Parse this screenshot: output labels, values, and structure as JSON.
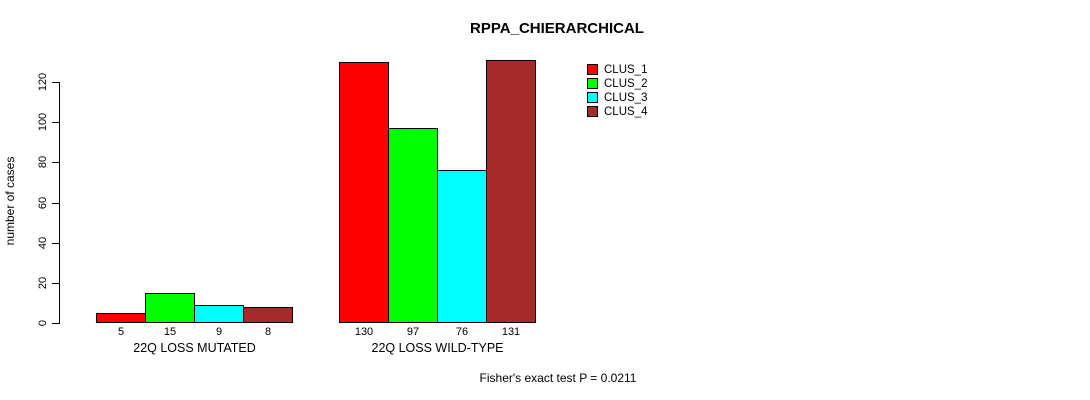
{
  "chart_data": {
    "type": "bar",
    "title": "RPPA_CHIERARCHICAL",
    "ylabel": "number of cases",
    "xlabel": "",
    "categories": [
      "22Q LOSS MUTATED",
      "22Q LOSS WILD-TYPE"
    ],
    "series": [
      {
        "name": "CLUS_1",
        "color": "#FF0000",
        "values": [
          5,
          130
        ]
      },
      {
        "name": "CLUS_2",
        "color": "#00FF00",
        "values": [
          15,
          97
        ]
      },
      {
        "name": "CLUS_3",
        "color": "#00FFFF",
        "values": [
          9,
          76
        ]
      },
      {
        "name": "CLUS_4",
        "color": "#A52A2A",
        "values": [
          8,
          131
        ]
      }
    ],
    "yticks": [
      0,
      20,
      40,
      60,
      80,
      100,
      120
    ],
    "ylim": [
      0,
      131
    ],
    "bar_value_labels": [
      [
        "5",
        "15",
        "9",
        "8"
      ],
      [
        "130",
        "97",
        "76",
        "131"
      ]
    ],
    "grid": false,
    "legend_position": "top-right",
    "annotation": "Fisher's exact test P = 0.0211"
  }
}
